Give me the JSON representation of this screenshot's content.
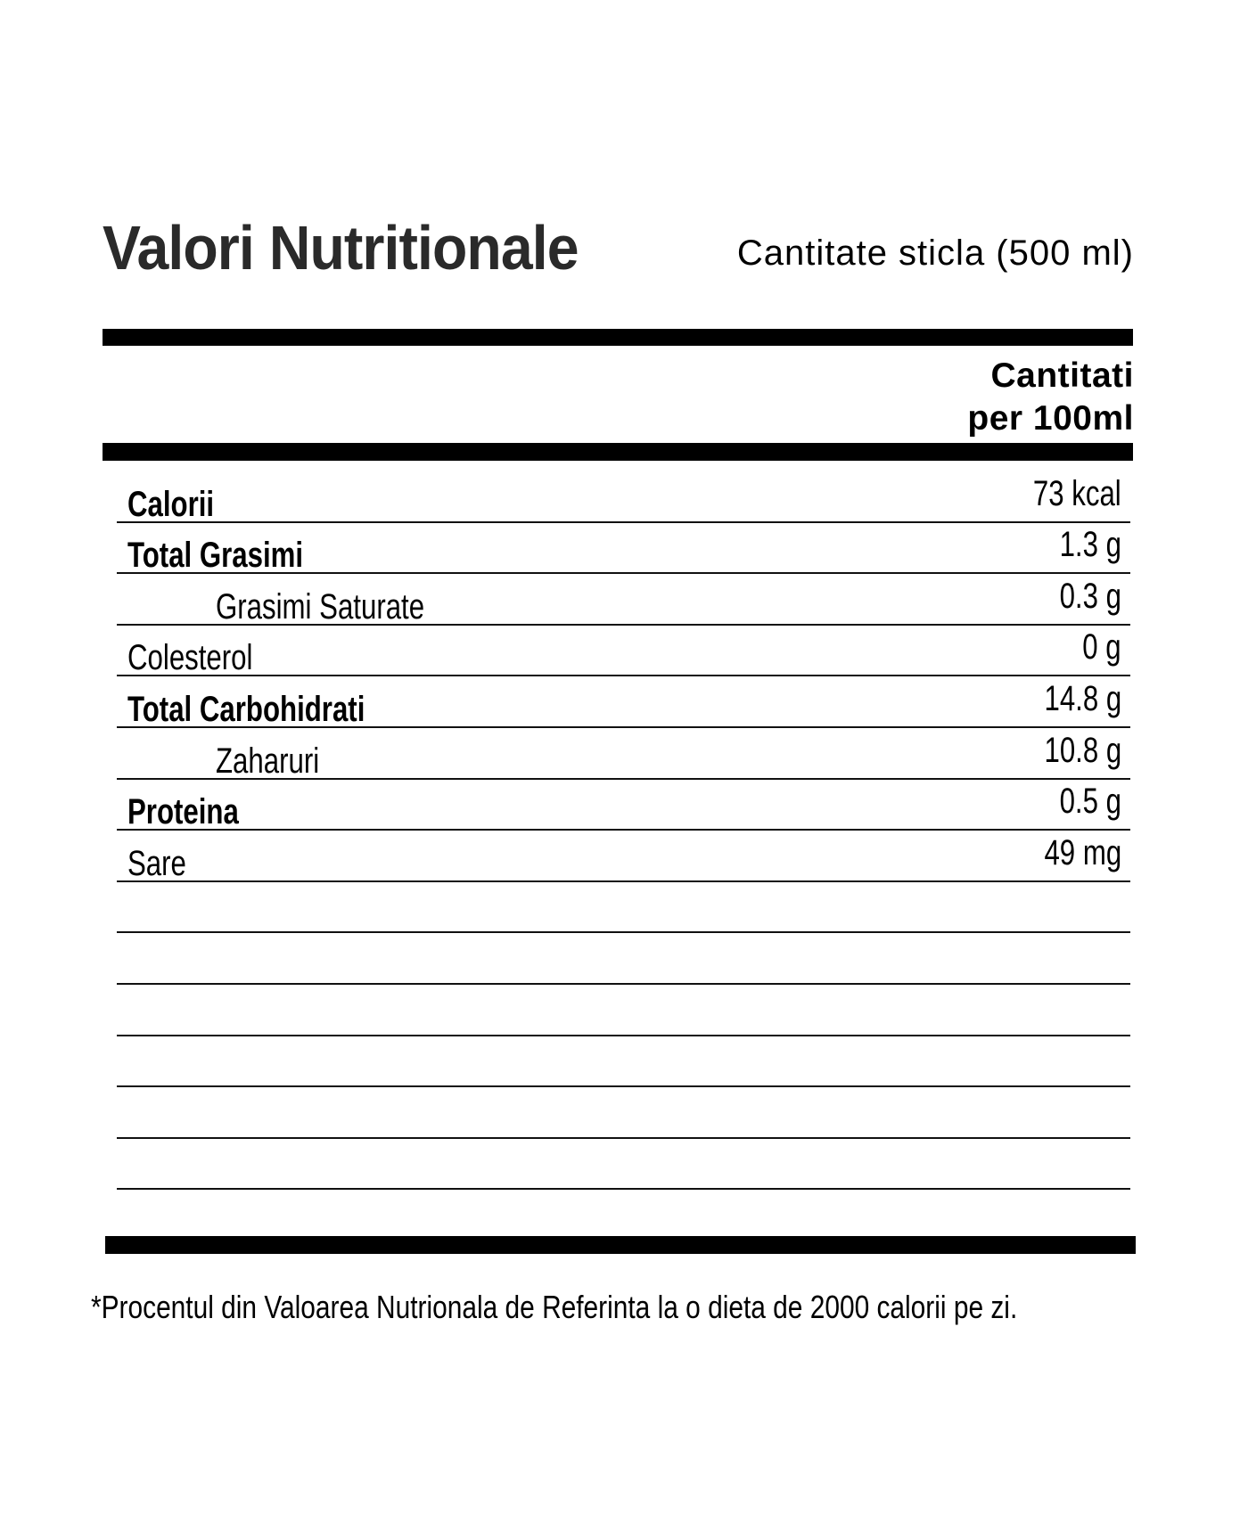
{
  "header": {
    "title": "Valori Nutritionale",
    "serving": "Cantitate sticla (500 ml)"
  },
  "column": {
    "line1": "Cantitati",
    "line2": "per 100ml"
  },
  "rows": [
    {
      "label": "Calorii",
      "value": "73 kcal",
      "bold": true,
      "indent": false
    },
    {
      "label": "Total Grasimi",
      "value": "1.3 g",
      "bold": true,
      "indent": false
    },
    {
      "label": "Grasimi Saturate",
      "value": "0.3 g",
      "bold": false,
      "indent": true
    },
    {
      "label": "Colesterol",
      "value": "0 g",
      "bold": false,
      "indent": false
    },
    {
      "label": "Total Carbohidrati",
      "value": "14.8 g",
      "bold": true,
      "indent": false
    },
    {
      "label": "Zaharuri",
      "value": "10.8 g",
      "bold": false,
      "indent": true
    },
    {
      "label": "Proteina",
      "value": "0.5 g",
      "bold": true,
      "indent": false
    },
    {
      "label": "Sare",
      "value": "49 mg",
      "bold": false,
      "indent": false
    },
    {
      "label": "",
      "value": ""
    },
    {
      "label": "",
      "value": ""
    },
    {
      "label": "",
      "value": ""
    },
    {
      "label": "",
      "value": ""
    },
    {
      "label": "",
      "value": ""
    },
    {
      "label": "",
      "value": ""
    }
  ],
  "footnote": "*Procentul din Valoarea Nutrionala de Referinta la o dieta de 2000 calorii pe zi."
}
